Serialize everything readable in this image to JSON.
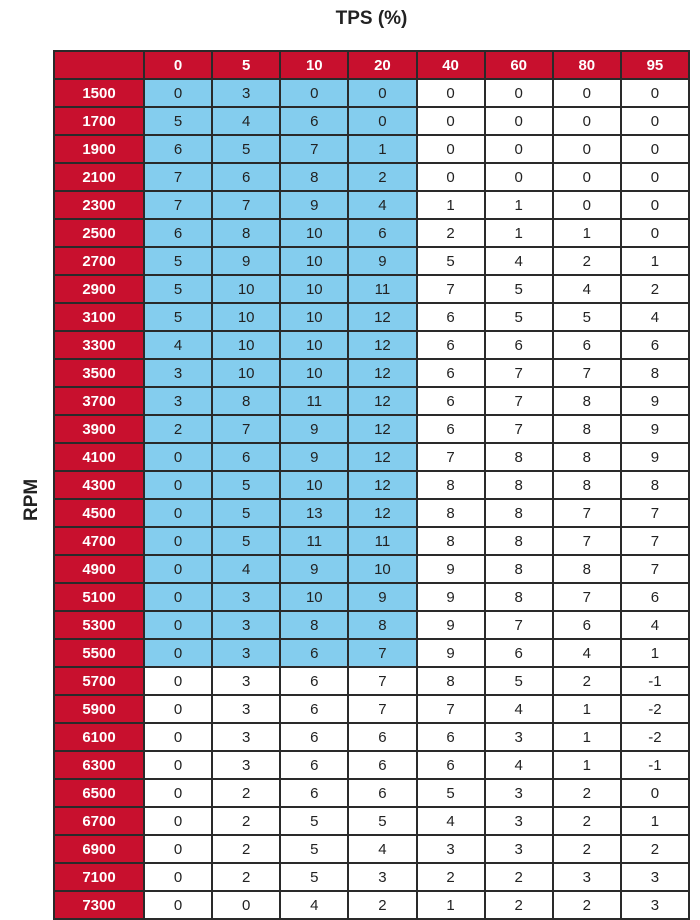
{
  "chart_data": {
    "type": "table",
    "title": "TPS (%)",
    "ylabel": "RPM",
    "columns": [
      "0",
      "5",
      "10",
      "20",
      "40",
      "60",
      "80",
      "95"
    ],
    "colors": {
      "header": "#c8102e",
      "highlight": "#84cdee",
      "cell": "#ffffff"
    },
    "highlight": {
      "columns": [
        "0",
        "5",
        "10",
        "20"
      ],
      "rpm_from": 1500,
      "rpm_to": 5500
    },
    "rows": [
      {
        "rpm": "1500",
        "values": [
          0,
          3,
          0,
          0,
          0,
          0,
          0,
          0
        ]
      },
      {
        "rpm": "1700",
        "values": [
          5,
          4,
          6,
          0,
          0,
          0,
          0,
          0
        ]
      },
      {
        "rpm": "1900",
        "values": [
          6,
          5,
          7,
          1,
          0,
          0,
          0,
          0
        ]
      },
      {
        "rpm": "2100",
        "values": [
          7,
          6,
          8,
          2,
          0,
          0,
          0,
          0
        ]
      },
      {
        "rpm": "2300",
        "values": [
          7,
          7,
          9,
          4,
          1,
          1,
          0,
          0
        ]
      },
      {
        "rpm": "2500",
        "values": [
          6,
          8,
          10,
          6,
          2,
          1,
          1,
          0
        ]
      },
      {
        "rpm": "2700",
        "values": [
          5,
          9,
          10,
          9,
          5,
          4,
          2,
          1
        ]
      },
      {
        "rpm": "2900",
        "values": [
          5,
          10,
          10,
          11,
          7,
          5,
          4,
          2
        ]
      },
      {
        "rpm": "3100",
        "values": [
          5,
          10,
          10,
          12,
          6,
          5,
          5,
          4
        ]
      },
      {
        "rpm": "3300",
        "values": [
          4,
          10,
          10,
          12,
          6,
          6,
          6,
          6
        ]
      },
      {
        "rpm": "3500",
        "values": [
          3,
          10,
          10,
          12,
          6,
          7,
          7,
          8
        ]
      },
      {
        "rpm": "3700",
        "values": [
          3,
          8,
          11,
          12,
          6,
          7,
          8,
          9
        ]
      },
      {
        "rpm": "3900",
        "values": [
          2,
          7,
          9,
          12,
          6,
          7,
          8,
          9
        ]
      },
      {
        "rpm": "4100",
        "values": [
          0,
          6,
          9,
          12,
          7,
          8,
          8,
          9
        ]
      },
      {
        "rpm": "4300",
        "values": [
          0,
          5,
          10,
          12,
          8,
          8,
          8,
          8
        ]
      },
      {
        "rpm": "4500",
        "values": [
          0,
          5,
          13,
          12,
          8,
          8,
          7,
          7
        ]
      },
      {
        "rpm": "4700",
        "values": [
          0,
          5,
          11,
          11,
          8,
          8,
          7,
          7
        ]
      },
      {
        "rpm": "4900",
        "values": [
          0,
          4,
          9,
          10,
          9,
          8,
          8,
          7
        ]
      },
      {
        "rpm": "5100",
        "values": [
          0,
          3,
          10,
          9,
          9,
          8,
          7,
          6
        ]
      },
      {
        "rpm": "5300",
        "values": [
          0,
          3,
          8,
          8,
          9,
          7,
          6,
          4
        ]
      },
      {
        "rpm": "5500",
        "values": [
          0,
          3,
          6,
          7,
          9,
          6,
          4,
          1
        ]
      },
      {
        "rpm": "5700",
        "values": [
          0,
          3,
          6,
          7,
          8,
          5,
          2,
          -1
        ]
      },
      {
        "rpm": "5900",
        "values": [
          0,
          3,
          6,
          7,
          7,
          4,
          1,
          -2
        ]
      },
      {
        "rpm": "6100",
        "values": [
          0,
          3,
          6,
          6,
          6,
          3,
          1,
          -2
        ]
      },
      {
        "rpm": "6300",
        "values": [
          0,
          3,
          6,
          6,
          6,
          4,
          1,
          -1
        ]
      },
      {
        "rpm": "6500",
        "values": [
          0,
          2,
          6,
          6,
          5,
          3,
          2,
          0
        ]
      },
      {
        "rpm": "6700",
        "values": [
          0,
          2,
          5,
          5,
          4,
          3,
          2,
          1
        ]
      },
      {
        "rpm": "6900",
        "values": [
          0,
          2,
          5,
          4,
          3,
          3,
          2,
          2
        ]
      },
      {
        "rpm": "7100",
        "values": [
          0,
          2,
          5,
          3,
          2,
          2,
          3,
          3
        ]
      },
      {
        "rpm": "7300",
        "values": [
          0,
          0,
          4,
          2,
          1,
          2,
          2,
          3
        ]
      }
    ]
  }
}
